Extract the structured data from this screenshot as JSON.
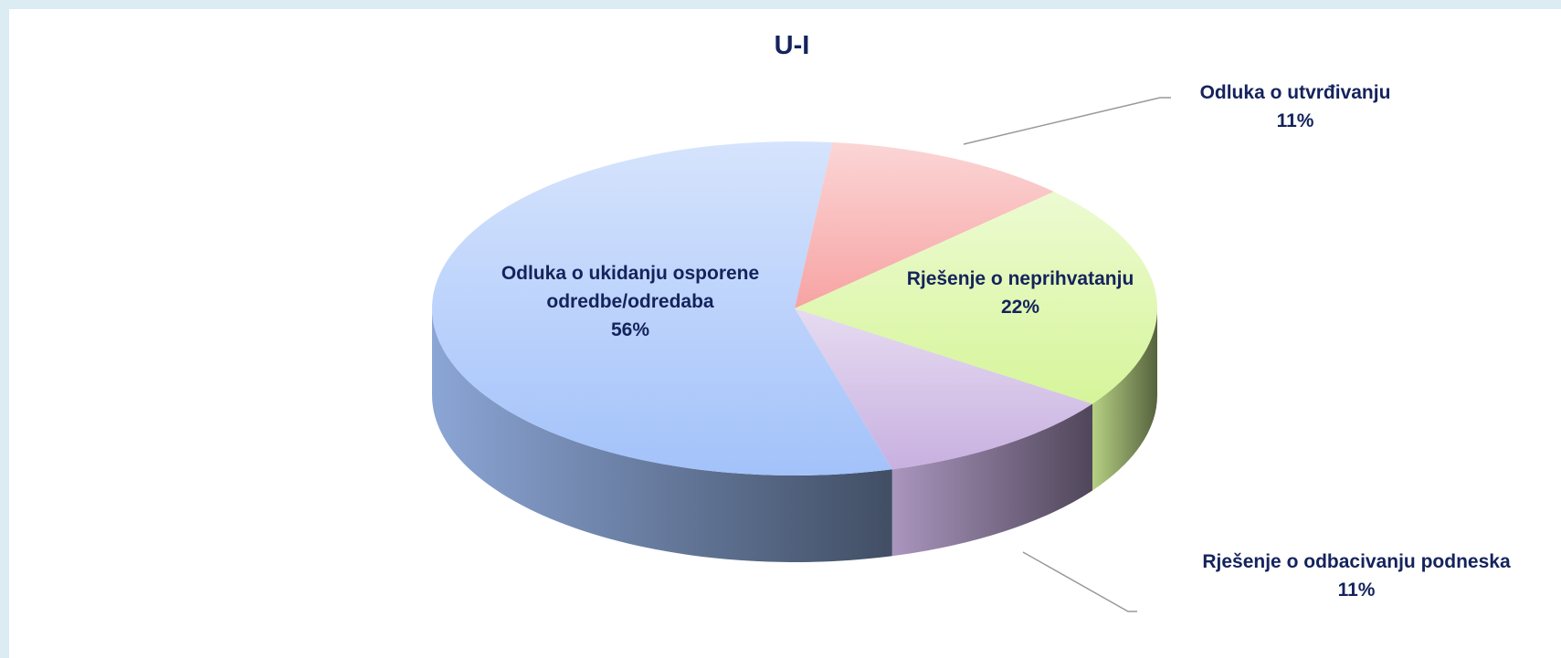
{
  "chart_data": {
    "type": "pie",
    "title": "U-I",
    "categories": [
      "Odluka o utvrđivanju",
      "Rješenje o neprihvatanju",
      "Rješenje o odbacivanju podneska",
      "Odluka o ukidanju osporene odredbe/odredaba"
    ],
    "values": [
      11,
      22,
      11,
      56
    ],
    "value_labels": [
      "11%",
      "22%",
      "11%",
      "56%"
    ],
    "colors": [
      "#f7a3a3",
      "#d6f59a",
      "#c8b0e0",
      "#a3c2fa"
    ]
  }
}
